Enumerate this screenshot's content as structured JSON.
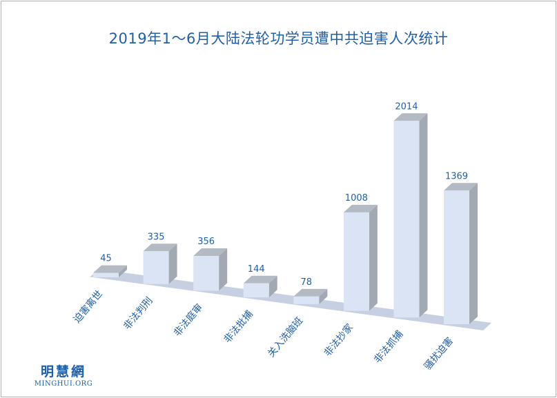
{
  "chart_data": {
    "type": "bar",
    "title": "2019年1～6月大陆法轮功学员遭中共迫害人次统计",
    "categories": [
      "迫害离世",
      "非法判刑",
      "非法庭审",
      "非法批捕",
      "关入洗脑班",
      "非法抄家",
      "非法抓捕",
      "骚扰迫害"
    ],
    "values": [
      45,
      335,
      356,
      144,
      78,
      1008,
      2014,
      1369
    ],
    "data_labels": [
      "45",
      "335",
      "356",
      "144",
      "78",
      "1008",
      "2014",
      "1369"
    ],
    "xlabel": "",
    "ylabel": "",
    "ylim": [
      0,
      2014
    ],
    "grid": false,
    "legend": "none",
    "bar_colors": {
      "front": "#dbe4f5",
      "side": "#a3a9b3",
      "top": "#b4bac3",
      "floor": "#c7d0e2"
    }
  },
  "brand": {
    "name_cn": "明慧網",
    "name_en": "MINGHUI.ORG"
  }
}
